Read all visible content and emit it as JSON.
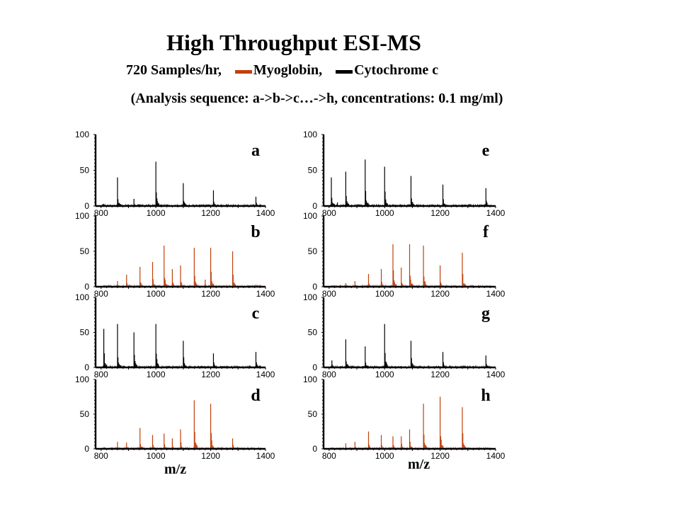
{
  "header": {
    "title": "High Throughput ESI-MS",
    "samples": "720 Samples/hr,",
    "legend_myo": "Myoglobin,",
    "legend_cyt": "Cytochrome c",
    "note": "(Analysis sequence: a->b->c…->h, concentrations: 0.1 mg/ml)"
  },
  "xlabel": "m/z",
  "colors": {
    "myoglobin": "#c0410c",
    "cytochrome": "#000000"
  },
  "chart_data": {
    "type": "line",
    "title": "High Throughput ESI-MS",
    "xlabel": "m/z",
    "ylabel": "",
    "xlim": [
      780,
      1400
    ],
    "ylim": [
      0,
      100
    ],
    "xticks": [
      800,
      1000,
      1200,
      1400
    ],
    "yticks": [
      0,
      50,
      100
    ],
    "legend": [
      {
        "name": "Myoglobin",
        "color": "#c0410c"
      },
      {
        "name": "Cytochrome c",
        "color": "#000000"
      }
    ],
    "panels": [
      {
        "label": "a",
        "sample": "Cytochrome c",
        "peaks": [
          [
            810,
            3
          ],
          [
            860,
            40
          ],
          [
            920,
            10
          ],
          [
            1000,
            62
          ],
          [
            1100,
            32
          ],
          [
            1210,
            22
          ],
          [
            1365,
            13
          ]
        ]
      },
      {
        "label": "b",
        "sample": "Myoglobin",
        "peaks": [
          [
            810,
            2
          ],
          [
            860,
            8
          ],
          [
            893,
            17
          ],
          [
            942,
            28
          ],
          [
            988,
            35
          ],
          [
            1030,
            58
          ],
          [
            1060,
            25
          ],
          [
            1090,
            30
          ],
          [
            1140,
            55
          ],
          [
            1180,
            10
          ],
          [
            1200,
            55
          ],
          [
            1280,
            50
          ]
        ]
      },
      {
        "label": "c",
        "sample": "Cytochrome c",
        "peaks": [
          [
            810,
            55
          ],
          [
            860,
            62
          ],
          [
            920,
            50
          ],
          [
            1000,
            62
          ],
          [
            1100,
            38
          ],
          [
            1210,
            20
          ],
          [
            1365,
            22
          ]
        ]
      },
      {
        "label": "d",
        "sample": "Myoglobin",
        "peaks": [
          [
            810,
            2
          ],
          [
            860,
            10
          ],
          [
            893,
            9
          ],
          [
            942,
            30
          ],
          [
            988,
            20
          ],
          [
            1030,
            22
          ],
          [
            1060,
            15
          ],
          [
            1090,
            28
          ],
          [
            1140,
            70
          ],
          [
            1200,
            65
          ],
          [
            1280,
            15
          ]
        ]
      },
      {
        "label": "e",
        "sample": "Cytochrome c",
        "peaks": [
          [
            808,
            40
          ],
          [
            830,
            5
          ],
          [
            860,
            48
          ],
          [
            930,
            65
          ],
          [
            1000,
            55
          ],
          [
            1095,
            42
          ],
          [
            1210,
            30
          ],
          [
            1365,
            25
          ]
        ]
      },
      {
        "label": "f",
        "sample": "Myoglobin",
        "peaks": [
          [
            810,
            2
          ],
          [
            860,
            5
          ],
          [
            893,
            8
          ],
          [
            942,
            18
          ],
          [
            988,
            25
          ],
          [
            1030,
            60
          ],
          [
            1060,
            27
          ],
          [
            1090,
            60
          ],
          [
            1140,
            58
          ],
          [
            1200,
            30
          ],
          [
            1280,
            48
          ]
        ]
      },
      {
        "label": "g",
        "sample": "Cytochrome c",
        "peaks": [
          [
            810,
            10
          ],
          [
            860,
            40
          ],
          [
            930,
            30
          ],
          [
            1000,
            62
          ],
          [
            1095,
            38
          ],
          [
            1210,
            22
          ],
          [
            1365,
            17
          ]
        ]
      },
      {
        "label": "h",
        "sample": "Myoglobin",
        "peaks": [
          [
            810,
            2
          ],
          [
            860,
            8
          ],
          [
            893,
            10
          ],
          [
            942,
            25
          ],
          [
            988,
            20
          ],
          [
            1030,
            18
          ],
          [
            1060,
            18
          ],
          [
            1090,
            28
          ],
          [
            1140,
            65
          ],
          [
            1200,
            75
          ],
          [
            1280,
            60
          ]
        ]
      }
    ]
  }
}
